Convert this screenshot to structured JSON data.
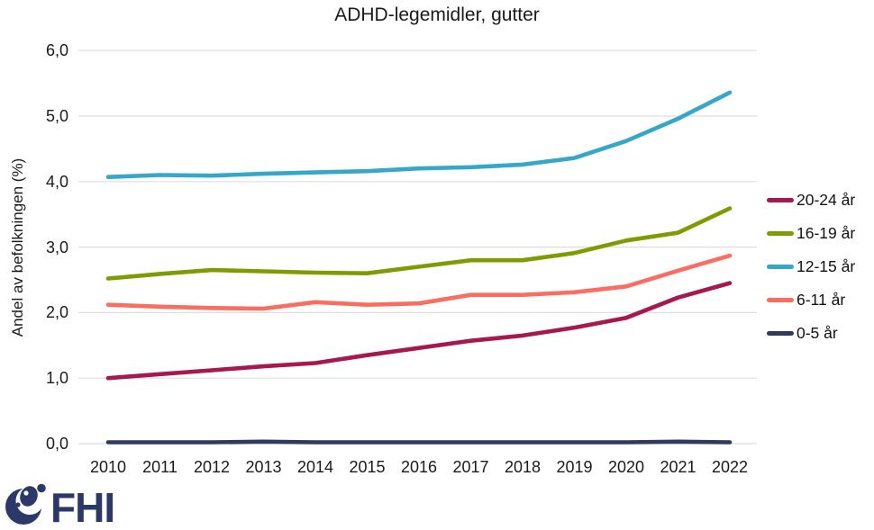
{
  "chart_data": {
    "type": "line",
    "title": "ADHD-legemidler, gutter",
    "xlabel": "",
    "ylabel": "Andel av befolkningen (%)",
    "x": [
      2010,
      2011,
      2012,
      2013,
      2014,
      2015,
      2016,
      2017,
      2018,
      2019,
      2020,
      2021,
      2022
    ],
    "ylim": [
      0,
      6
    ],
    "ytick_values": [
      0,
      1,
      2,
      3,
      4,
      5,
      6
    ],
    "ytick_labels": [
      "0,0",
      "1,0",
      "2,0",
      "3,0",
      "4,0",
      "5,0",
      "6,0"
    ],
    "grid": true,
    "gridline_color": "#dedede",
    "legend_position": "right",
    "series": [
      {
        "name": "20-24 år",
        "color": "#A8174E",
        "values": [
          1.0,
          1.06,
          1.12,
          1.18,
          1.23,
          1.35,
          1.46,
          1.57,
          1.65,
          1.77,
          1.92,
          2.23,
          2.45
        ]
      },
      {
        "name": "16-19 år",
        "color": "#7D9C00",
        "values": [
          2.52,
          2.59,
          2.65,
          2.63,
          2.61,
          2.6,
          2.7,
          2.8,
          2.8,
          2.91,
          3.1,
          3.22,
          3.59
        ]
      },
      {
        "name": "12-15 år",
        "color": "#35A7C9",
        "values": [
          4.07,
          4.1,
          4.09,
          4.12,
          4.14,
          4.16,
          4.2,
          4.22,
          4.26,
          4.36,
          4.62,
          4.96,
          5.36
        ]
      },
      {
        "name": "6-11 år",
        "color": "#FA6D60",
        "values": [
          2.12,
          2.09,
          2.07,
          2.06,
          2.16,
          2.12,
          2.14,
          2.27,
          2.27,
          2.31,
          2.4,
          2.64,
          2.87
        ]
      },
      {
        "name": "0-5 år",
        "color": "#303A5E",
        "values": [
          0.02,
          0.02,
          0.02,
          0.03,
          0.02,
          0.02,
          0.02,
          0.02,
          0.02,
          0.02,
          0.02,
          0.03,
          0.02
        ]
      }
    ]
  },
  "footer": {
    "logo_text": "FHI"
  },
  "colors": {
    "text": "#1a1a1a",
    "logo": "#2C3968",
    "background": "#ffffff"
  }
}
